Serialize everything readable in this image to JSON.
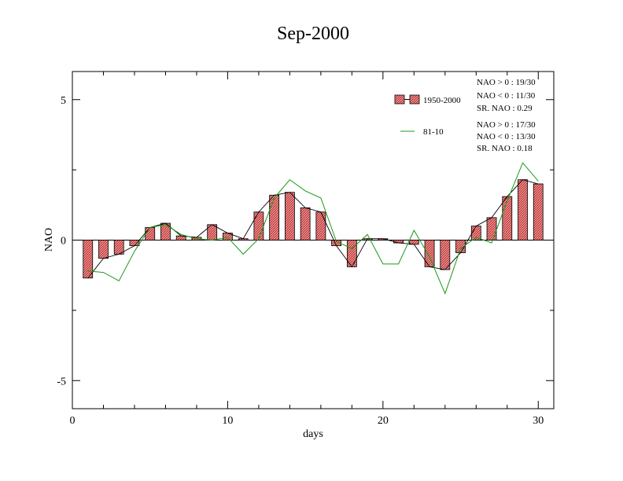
{
  "chart_data": {
    "type": "bar",
    "title": "Sep-2000",
    "xlabel": "days",
    "ylabel": "NAO",
    "xlim": [
      0,
      31
    ],
    "ylim": [
      -6,
      6
    ],
    "xticks": [
      0,
      10,
      20,
      30
    ],
    "yticks": [
      -5,
      0,
      5
    ],
    "x": [
      1,
      2,
      3,
      4,
      5,
      6,
      7,
      8,
      9,
      10,
      11,
      12,
      13,
      14,
      15,
      16,
      17,
      18,
      19,
      20,
      21,
      22,
      23,
      24,
      25,
      26,
      27,
      28,
      29,
      30
    ],
    "series": [
      {
        "name": "1950-2000",
        "kind": "bar",
        "color": "#e06060",
        "values": [
          -1.35,
          -0.65,
          -0.5,
          -0.2,
          0.45,
          0.6,
          0.15,
          0.1,
          0.55,
          0.25,
          0.05,
          1.0,
          1.6,
          1.7,
          1.15,
          1.0,
          -0.2,
          -0.95,
          0.05,
          0.05,
          -0.1,
          -0.15,
          -0.95,
          -1.05,
          -0.45,
          0.5,
          0.8,
          1.55,
          2.15,
          2.0
        ]
      },
      {
        "name": "81-10",
        "kind": "line",
        "color": "#1a9a1a",
        "values": [
          -1.1,
          -1.15,
          -1.45,
          -0.4,
          0.45,
          0.55,
          0.2,
          0.05,
          0.0,
          0.1,
          -0.5,
          0.05,
          1.5,
          2.15,
          1.75,
          1.5,
          -0.05,
          -0.3,
          0.2,
          -0.85,
          -0.85,
          0.35,
          -0.6,
          -1.9,
          -0.3,
          0.1,
          -0.1,
          1.4,
          2.75,
          2.1
        ]
      }
    ],
    "stats": [
      {
        "lines": [
          "NAO > 0 : 19/30",
          "NAO < 0 : 11/30",
          "SR. NAO : 0.29"
        ]
      },
      {
        "lines": [
          "NAO > 0 : 17/30",
          "NAO < 0 : 13/30",
          "SR. NAO : 0.18"
        ]
      }
    ],
    "legend_position": "top-right",
    "grid": false
  }
}
